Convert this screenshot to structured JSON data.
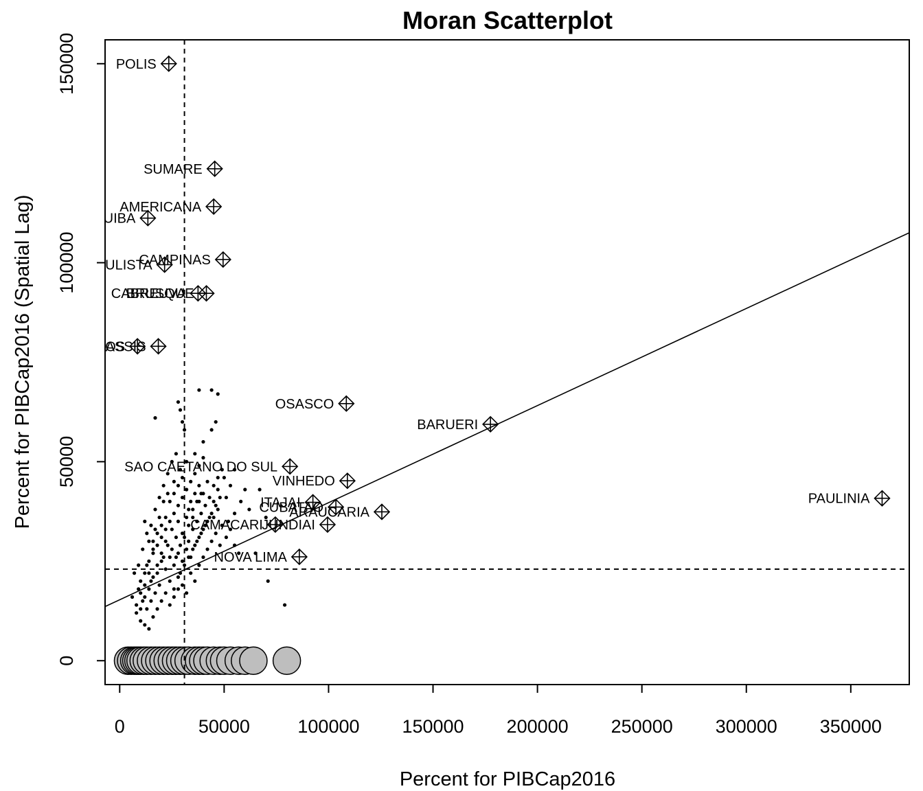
{
  "chart_data": {
    "type": "scatter",
    "title": "Moran Scatterplot",
    "xlabel": "Percent for PIBCap2016",
    "ylabel": "Percent for PIBCap2016 (Spatial Lag)",
    "xlim": [
      -7000,
      378000
    ],
    "ylim": [
      -6000,
      156000
    ],
    "x_ticks": [
      0,
      50000,
      100000,
      150000,
      200000,
      250000,
      300000,
      350000
    ],
    "x_tick_labels": [
      "0",
      "50000",
      "100000",
      "150000",
      "200000",
      "250000",
      "300000",
      "350000"
    ],
    "y_ticks": [
      0,
      50000,
      100000,
      150000
    ],
    "y_tick_labels": [
      "0",
      "50000",
      "100000",
      "150000"
    ],
    "mean_x": 31000,
    "mean_y": 23000,
    "regression_line": {
      "intercept": 15300,
      "slope": 0.244
    },
    "labeled_points": [
      {
        "label": "POLIS",
        "x": 23500,
        "y": 150000
      },
      {
        "label": "SUMARE",
        "x": 45500,
        "y": 123600
      },
      {
        "label": "AMERICANA",
        "x": 45000,
        "y": 114100
      },
      {
        "label": "UIBA",
        "x": 13500,
        "y": 111200
      },
      {
        "label": "CAMPINAS",
        "x": 49500,
        "y": 100800
      },
      {
        "label": "ULISTA",
        "x": 21500,
        "y": 99500
      },
      {
        "label": "BRUSQUE",
        "x": 41500,
        "y": 92300
      },
      {
        "label": "CABREUVA",
        "x": 37500,
        "y": 92300
      },
      {
        "label": "ASSIS",
        "x": 18500,
        "y": 79000
      },
      {
        "label": "AIOS",
        "x": 8500,
        "y": 79000
      },
      {
        "label": "OSASCO",
        "x": 108500,
        "y": 64600
      },
      {
        "label": "BARUERI",
        "x": 177500,
        "y": 59400
      },
      {
        "label": "SAO CAETANO DO SUL",
        "x": 81500,
        "y": 48800
      },
      {
        "label": "VINHEDO",
        "x": 109000,
        "y": 45200
      },
      {
        "label": "ITAJAI",
        "x": 92500,
        "y": 39800
      },
      {
        "label": "CUBATAO",
        "x": 103500,
        "y": 38600
      },
      {
        "label": "ARAUCARIA",
        "x": 125500,
        "y": 37400
      },
      {
        "label": "CAMACARI",
        "x": 74500,
        "y": 34200
      },
      {
        "label": "JUNDIAI",
        "x": 99500,
        "y": 34200
      },
      {
        "label": "NOVA LIMA",
        "x": 86000,
        "y": 26100
      },
      {
        "label": "PAULINIA",
        "x": 365000,
        "y": 40800
      }
    ],
    "zero_lag_points_x": [
      4000,
      5500,
      7000,
      8000,
      9000,
      10000,
      11500,
      13000,
      15000,
      17000,
      19000,
      21000,
      23000,
      25000,
      27000,
      29000,
      31000,
      33000,
      36000,
      38000,
      40000,
      42000,
      45000,
      48000,
      50000,
      53000,
      57000,
      60000,
      64000,
      80000
    ],
    "points": [
      [
        13000,
        24000
      ],
      [
        15000,
        20000
      ],
      [
        11000,
        15000
      ],
      [
        9000,
        18000
      ],
      [
        20000,
        25000
      ],
      [
        22000,
        30000
      ],
      [
        25000,
        28000
      ],
      [
        28000,
        35000
      ],
      [
        30000,
        32000
      ],
      [
        33000,
        38000
      ],
      [
        35000,
        36000
      ],
      [
        38000,
        40000
      ],
      [
        40000,
        42000
      ],
      [
        42000,
        45000
      ],
      [
        45000,
        40000
      ],
      [
        47000,
        43000
      ],
      [
        50000,
        46000
      ],
      [
        18000,
        22000
      ],
      [
        16000,
        28000
      ],
      [
        14000,
        30000
      ],
      [
        12000,
        35000
      ],
      [
        17000,
        33000
      ],
      [
        19000,
        36000
      ],
      [
        21000,
        40000
      ],
      [
        23000,
        42000
      ],
      [
        26000,
        45000
      ],
      [
        29000,
        48000
      ],
      [
        32000,
        50000
      ],
      [
        36000,
        52000
      ],
      [
        40000,
        55000
      ],
      [
        44000,
        58000
      ],
      [
        46000,
        60000
      ],
      [
        30000,
        60000
      ],
      [
        29000,
        63000
      ],
      [
        28000,
        65000
      ],
      [
        38000,
        68000
      ],
      [
        44000,
        68000
      ],
      [
        47000,
        67000
      ],
      [
        17000,
        61000
      ],
      [
        31000,
        58000
      ],
      [
        24000,
        20000
      ],
      [
        26000,
        18000
      ],
      [
        28000,
        21000
      ],
      [
        30000,
        19000
      ],
      [
        32000,
        17000
      ],
      [
        34000,
        22000
      ],
      [
        36000,
        20000
      ],
      [
        38000,
        24000
      ],
      [
        40000,
        26000
      ],
      [
        42000,
        28000
      ],
      [
        44000,
        30000
      ],
      [
        46000,
        32000
      ],
      [
        48000,
        29000
      ],
      [
        52000,
        35000
      ],
      [
        55000,
        37000
      ],
      [
        58000,
        40000
      ],
      [
        60000,
        43000
      ],
      [
        62000,
        38000
      ],
      [
        65000,
        27000
      ],
      [
        67000,
        43000
      ],
      [
        70000,
        36000
      ],
      [
        71000,
        20000
      ],
      [
        79000,
        14000
      ],
      [
        8000,
        12000
      ],
      [
        10000,
        10000
      ],
      [
        12000,
        9000
      ],
      [
        14000,
        8000
      ],
      [
        16000,
        11000
      ],
      [
        18000,
        13000
      ],
      [
        20000,
        15000
      ],
      [
        22000,
        17000
      ],
      [
        24000,
        14000
      ],
      [
        26000,
        16000
      ],
      [
        28000,
        18000
      ],
      [
        10000,
        20000
      ],
      [
        12000,
        22000
      ],
      [
        14000,
        25000
      ],
      [
        16000,
        27000
      ],
      [
        18000,
        29000
      ],
      [
        20000,
        31000
      ],
      [
        22000,
        33000
      ],
      [
        24000,
        35000
      ],
      [
        26000,
        37000
      ],
      [
        28000,
        39000
      ],
      [
        30000,
        41000
      ],
      [
        32000,
        43000
      ],
      [
        34000,
        45000
      ],
      [
        36000,
        47000
      ],
      [
        38000,
        49000
      ],
      [
        40000,
        51000
      ],
      [
        15000,
        34000
      ],
      [
        17000,
        38000
      ],
      [
        19000,
        41000
      ],
      [
        21000,
        44000
      ],
      [
        23000,
        47000
      ],
      [
        25000,
        50000
      ],
      [
        27000,
        52000
      ],
      [
        33000,
        30000
      ],
      [
        35000,
        33000
      ],
      [
        37000,
        35000
      ],
      [
        39000,
        37000
      ],
      [
        41000,
        39000
      ],
      [
        43000,
        41000
      ],
      [
        45000,
        36000
      ],
      [
        47000,
        38000
      ],
      [
        49000,
        34000
      ],
      [
        51000,
        31000
      ],
      [
        53000,
        33000
      ],
      [
        55000,
        29000
      ],
      [
        57000,
        27000
      ],
      [
        13000,
        32000
      ],
      [
        11000,
        28000
      ],
      [
        9000,
        24000
      ],
      [
        7000,
        22000
      ],
      [
        6000,
        16000
      ],
      [
        8000,
        14000
      ],
      [
        10000,
        13000
      ],
      [
        12000,
        16000
      ],
      [
        14000,
        18000
      ],
      [
        16000,
        21000
      ],
      [
        18000,
        24000
      ],
      [
        20000,
        27000
      ],
      [
        22000,
        23000
      ],
      [
        24000,
        26000
      ],
      [
        26000,
        24000
      ],
      [
        28000,
        27000
      ],
      [
        30000,
        25000
      ],
      [
        32000,
        28000
      ],
      [
        34000,
        26000
      ],
      [
        36000,
        29000
      ],
      [
        38000,
        31000
      ],
      [
        40000,
        33000
      ],
      [
        42000,
        35000
      ],
      [
        44000,
        37000
      ],
      [
        46000,
        39000
      ],
      [
        48000,
        41000
      ],
      [
        27000,
        31000
      ],
      [
        25000,
        33000
      ],
      [
        23000,
        29000
      ],
      [
        21000,
        26000
      ],
      [
        19000,
        19000
      ],
      [
        17000,
        17000
      ],
      [
        15000,
        15000
      ],
      [
        13000,
        13000
      ],
      [
        29000,
        22000
      ],
      [
        31000,
        24000
      ],
      [
        33000,
        26000
      ],
      [
        35000,
        28000
      ],
      [
        37000,
        30000
      ],
      [
        39000,
        32000
      ],
      [
        41000,
        34000
      ],
      [
        43000,
        36000
      ],
      [
        45000,
        44000
      ],
      [
        47000,
        46000
      ],
      [
        49000,
        48000
      ],
      [
        51000,
        41000
      ],
      [
        53000,
        44000
      ],
      [
        55000,
        48000
      ],
      [
        24000,
        40000
      ],
      [
        26000,
        42000
      ],
      [
        28000,
        44000
      ],
      [
        30000,
        46000
      ],
      [
        32000,
        36000
      ],
      [
        34000,
        40000
      ],
      [
        36000,
        42000
      ],
      [
        38000,
        44000
      ],
      [
        20000,
        34000
      ],
      [
        22000,
        36000
      ],
      [
        18000,
        32000
      ],
      [
        16000,
        30000
      ],
      [
        14000,
        22000
      ],
      [
        12000,
        19000
      ],
      [
        10000,
        17000
      ],
      [
        27000,
        26000
      ],
      [
        29000,
        29000
      ],
      [
        31000,
        31000
      ],
      [
        33000,
        34000
      ],
      [
        35000,
        38000
      ],
      [
        37000,
        40000
      ],
      [
        39000,
        42000
      ]
    ]
  }
}
